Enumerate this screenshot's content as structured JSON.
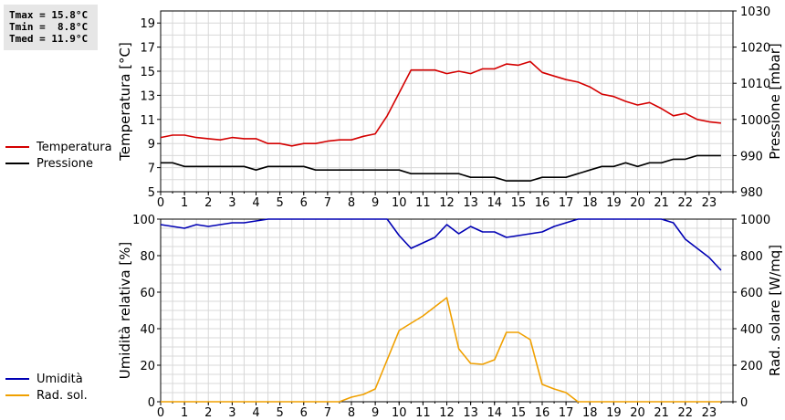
{
  "stats": {
    "tmax": "Tmax = 15.8°C",
    "tmin": "Tmin =  8.8°C",
    "tmed": "Tmed = 11.9°C"
  },
  "legend_top": [
    {
      "label": "Temperatura",
      "color": "#d40000"
    },
    {
      "label": "Pressione",
      "color": "#000000"
    }
  ],
  "legend_bottom": [
    {
      "label": "Umidità",
      "color": "#0000b4"
    },
    {
      "label": "Rad. sol.",
      "color": "#f0a000"
    }
  ],
  "chart_data": [
    {
      "type": "line",
      "xlabel": "",
      "xlim": [
        0,
        24
      ],
      "x_ticks": [
        "0",
        "1",
        "2",
        "3",
        "4",
        "5",
        "6",
        "7",
        "8",
        "9",
        "10",
        "11",
        "12",
        "13",
        "14",
        "15",
        "16",
        "17",
        "18",
        "19",
        "20",
        "21",
        "22",
        "23"
      ],
      "grid": true,
      "left_axis": {
        "label": "Temperatura [°C]",
        "ylim": [
          5,
          20
        ],
        "ticks": [
          "5",
          "7",
          "9",
          "11",
          "13",
          "15",
          "17",
          "19"
        ]
      },
      "right_axis": {
        "label": "Pressione [mbar]",
        "ylim": [
          980,
          1030
        ],
        "ticks": [
          "980",
          "990",
          "1000",
          "1010",
          "1020",
          "1030"
        ]
      },
      "series": [
        {
          "name": "Temperatura",
          "axis": "left",
          "color": "#d40000",
          "x": [
            0,
            0.5,
            1,
            1.5,
            2,
            2.5,
            3,
            3.5,
            4,
            4.5,
            5,
            5.5,
            6,
            6.5,
            7,
            7.5,
            8,
            8.5,
            9,
            9.5,
            10,
            10.5,
            11,
            11.5,
            12,
            12.5,
            13,
            13.5,
            14,
            14.5,
            15,
            15.5,
            16,
            16.5,
            17,
            17.5,
            18,
            18.5,
            19,
            19.5,
            20,
            20.5,
            21,
            21.5,
            22,
            22.5,
            23,
            23.5
          ],
          "y": [
            9.5,
            9.7,
            9.7,
            9.5,
            9.4,
            9.3,
            9.5,
            9.4,
            9.4,
            9.0,
            9.0,
            8.8,
            9.0,
            9.0,
            9.2,
            9.3,
            9.3,
            9.6,
            9.8,
            11.3,
            13.2,
            15.1,
            15.1,
            15.1,
            14.8,
            15.0,
            14.8,
            15.2,
            15.2,
            15.6,
            15.5,
            15.8,
            14.9,
            14.6,
            14.3,
            14.1,
            13.7,
            13.1,
            12.9,
            12.5,
            12.2,
            12.4,
            11.9,
            11.3,
            11.5,
            11.0,
            10.8,
            10.7
          ]
        },
        {
          "name": "Pressione",
          "axis": "right",
          "color": "#000000",
          "x": [
            0,
            0.5,
            1,
            1.5,
            2,
            2.5,
            3,
            3.5,
            4,
            4.5,
            5,
            5.5,
            6,
            6.5,
            7,
            7.5,
            8,
            8.5,
            9,
            9.5,
            10,
            10.5,
            11,
            11.5,
            12,
            12.5,
            13,
            13.5,
            14,
            14.5,
            15,
            15.5,
            16,
            16.5,
            17,
            17.5,
            18,
            18.5,
            19,
            19.5,
            20,
            20.5,
            21,
            21.5,
            22,
            22.5,
            23,
            23.5
          ],
          "y": [
            988,
            988,
            987,
            987,
            987,
            987,
            987,
            987,
            986,
            987,
            987,
            987,
            987,
            986,
            986,
            986,
            986,
            986,
            986,
            986,
            986,
            985,
            985,
            985,
            985,
            985,
            984,
            984,
            984,
            983,
            983,
            983,
            984,
            984,
            984,
            985,
            986,
            987,
            987,
            988,
            987,
            988,
            988,
            989,
            989,
            990,
            990,
            990
          ]
        }
      ]
    },
    {
      "type": "line",
      "xlabel": "",
      "xlim": [
        0,
        24
      ],
      "x_ticks": [
        "0",
        "1",
        "2",
        "3",
        "4",
        "5",
        "6",
        "7",
        "8",
        "9",
        "10",
        "11",
        "12",
        "13",
        "14",
        "15",
        "16",
        "17",
        "18",
        "19",
        "20",
        "21",
        "22",
        "23"
      ],
      "grid": true,
      "left_axis": {
        "label": "Umidità relativa [%]",
        "ylim": [
          0,
          100
        ],
        "ticks": [
          "0",
          "20",
          "40",
          "60",
          "80",
          "100"
        ]
      },
      "right_axis": {
        "label": "Rad. solare [W/mq]",
        "ylim": [
          0,
          1000
        ],
        "ticks": [
          "0",
          "200",
          "400",
          "600",
          "800",
          "1000"
        ]
      },
      "series": [
        {
          "name": "Umidità",
          "axis": "left",
          "color": "#0000b4",
          "x": [
            0,
            0.5,
            1,
            1.5,
            2,
            2.5,
            3,
            3.5,
            4,
            4.5,
            5,
            5.5,
            6,
            6.5,
            7,
            7.5,
            8,
            8.5,
            9,
            9.5,
            10,
            10.5,
            11,
            11.5,
            12,
            12.5,
            13,
            13.5,
            14,
            14.5,
            15,
            15.5,
            16,
            16.5,
            17,
            17.5,
            18,
            18.5,
            19,
            19.5,
            20,
            20.5,
            21,
            21.5,
            22,
            22.5,
            23,
            23.5
          ],
          "y": [
            97,
            96,
            95,
            97,
            96,
            97,
            98,
            98,
            99,
            100,
            100,
            100,
            100,
            100,
            100,
            100,
            100,
            100,
            100,
            100,
            91,
            84,
            87,
            90,
            97,
            92,
            96,
            93,
            93,
            90,
            91,
            92,
            93,
            96,
            98,
            100,
            100,
            100,
            100,
            100,
            100,
            100,
            100,
            98,
            89,
            84,
            79,
            72
          ]
        },
        {
          "name": "Rad. sol.",
          "axis": "right",
          "color": "#f0a000",
          "x": [
            0,
            0.5,
            1,
            1.5,
            2,
            2.5,
            3,
            3.5,
            4,
            4.5,
            5,
            5.5,
            6,
            6.5,
            7,
            7.5,
            8,
            8.5,
            9,
            9.5,
            10,
            10.5,
            11,
            11.5,
            12,
            12.5,
            13,
            13.5,
            14,
            14.5,
            15,
            15.5,
            16,
            16.5,
            17,
            17.5,
            18,
            18.5,
            19,
            19.5,
            20,
            20.5,
            21,
            21.5,
            22,
            22.5,
            23,
            23.5
          ],
          "y": [
            0,
            0,
            0,
            0,
            0,
            0,
            0,
            0,
            0,
            0,
            0,
            0,
            0,
            0,
            0,
            0,
            25,
            40,
            70,
            230,
            390,
            430,
            470,
            520,
            570,
            290,
            210,
            205,
            230,
            380,
            380,
            340,
            95,
            70,
            50,
            0,
            0,
            0,
            0,
            0,
            0,
            0,
            0,
            0,
            0,
            0,
            0,
            0
          ]
        }
      ]
    }
  ]
}
